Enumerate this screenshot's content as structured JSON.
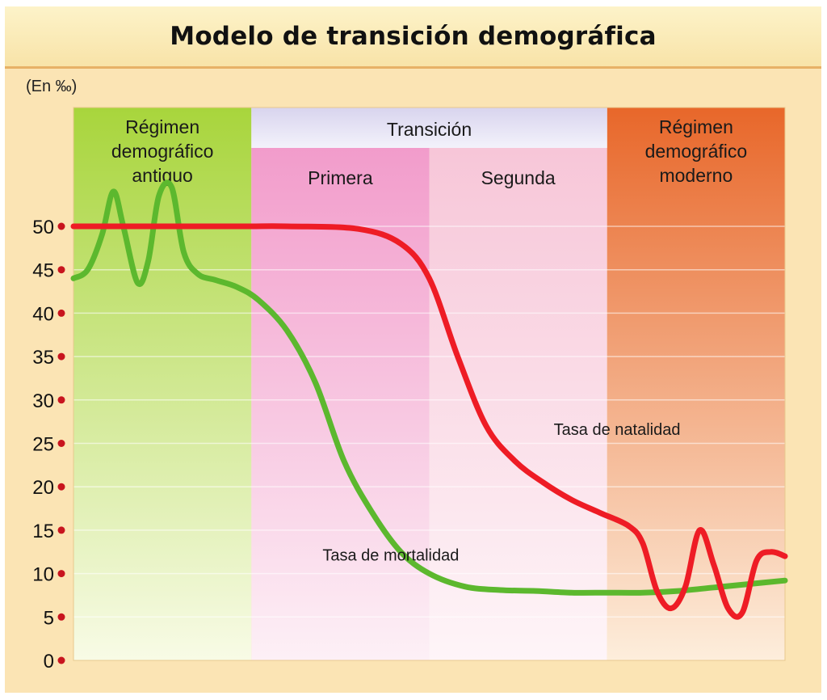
{
  "title": "Modelo de transición demográfica",
  "colors": {
    "natalidad": "#ee1c25",
    "mortalidad": "#5cb82e",
    "antiguo": "#a8d53c",
    "primera": "#f29ccb",
    "segunda": "#f7c6d8",
    "moderno": "#e8672a",
    "transicion_header": "#dedbf0",
    "panel": "#fbe4b4",
    "tick_dot": "#c8141e"
  },
  "chart_data": {
    "type": "line",
    "title": "Modelo de transición demográfica",
    "ylabel": "(En ‰)",
    "xlabel": "",
    "ylim": [
      0,
      50
    ],
    "y_ticks": [
      "0",
      "5",
      "10",
      "15",
      "20",
      "25",
      "30",
      "35",
      "40",
      "45",
      "50"
    ],
    "x_range": [
      0,
      100
    ],
    "grid": true,
    "regions": [
      {
        "key": "antiguo",
        "label": [
          "Régimen",
          "demográfico",
          "antiguo"
        ],
        "x_start": 0,
        "x_end": 25
      },
      {
        "key": "primera",
        "label": [
          "Primera"
        ],
        "x_start": 25,
        "x_end": 50,
        "group": "Transición"
      },
      {
        "key": "segunda",
        "label": [
          "Segunda"
        ],
        "x_start": 50,
        "x_end": 75,
        "group": "Transición"
      },
      {
        "key": "moderno",
        "label": [
          "Régimen",
          "demográfico",
          "moderno"
        ],
        "x_start": 75,
        "x_end": 100
      }
    ],
    "group_header": {
      "label": "Transición",
      "x_start": 25,
      "x_end": 75
    },
    "series": [
      {
        "name": "Tasa de natalidad",
        "x": [
          0,
          10,
          20,
          25,
          30,
          40,
          46,
          50,
          54,
          58,
          62,
          66,
          70,
          74,
          78,
          80,
          82,
          84,
          86,
          88,
          90,
          92,
          94,
          96,
          98,
          100
        ],
        "y": [
          50,
          50,
          50,
          50,
          50,
          49.7,
          48,
          44,
          35,
          27,
          23,
          20.5,
          18.5,
          17,
          15.5,
          13.5,
          8,
          6,
          8.5,
          15,
          11,
          6,
          5.5,
          11.5,
          12.5,
          12
        ]
      },
      {
        "name": "Tasa de mortalidad",
        "x": [
          0,
          2,
          4,
          5.6,
          7,
          9,
          10.5,
          12,
          13.8,
          15.5,
          17.5,
          20,
          23,
          26,
          30,
          34,
          38,
          42,
          46,
          50,
          55,
          60,
          65,
          70,
          75,
          80,
          85,
          90,
          95,
          100
        ],
        "y": [
          44,
          45,
          49,
          54,
          50,
          43.5,
          46,
          53.5,
          54.5,
          47,
          44.5,
          43.8,
          43,
          41.5,
          38,
          32,
          23,
          17,
          12.5,
          10,
          8.5,
          8.1,
          8,
          7.8,
          7.8,
          7.8,
          8,
          8.4,
          8.8,
          9.2
        ]
      }
    ],
    "annotations": [
      {
        "text": "Tasa de natalidad",
        "series": "Tasa de natalidad",
        "x": 67.5,
        "y": 26
      },
      {
        "text": "Tasa de mortalidad",
        "series": "Tasa de mortalidad",
        "x": 35,
        "y": 11.5
      }
    ]
  }
}
